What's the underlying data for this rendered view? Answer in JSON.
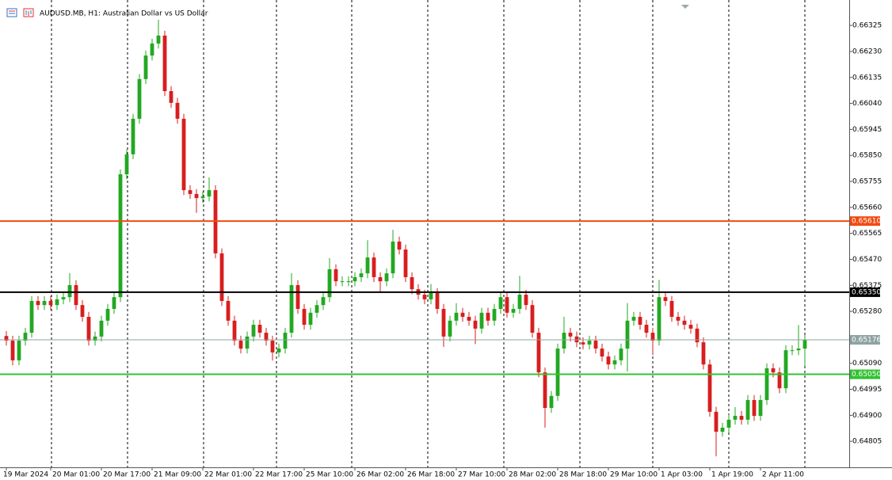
{
  "chart_data": {
    "type": "candlestick",
    "title": "AUDUSD.MB, H1:  Australian Dollar vs US Dollar",
    "up_color": "#22a822",
    "down_color": "#d81e1e",
    "categories": [
      "19 Mar 2024",
      null,
      null,
      null,
      null,
      null,
      null,
      "20 Mar 01:00",
      null,
      null,
      null,
      null,
      null,
      null,
      null,
      "20 Mar 17:00",
      null,
      null,
      null,
      null,
      null,
      null,
      null,
      "21 Mar 09:00",
      null,
      null,
      null,
      null,
      null,
      null,
      null,
      "22 Mar 01:00",
      null,
      null,
      null,
      null,
      null,
      null,
      null,
      "22 Mar 17:00",
      null,
      null,
      null,
      null,
      null,
      null,
      null,
      "25 Mar 10:00",
      null,
      null,
      null,
      null,
      null,
      null,
      null,
      "26 Mar 02:00",
      null,
      null,
      null,
      null,
      null,
      null,
      null,
      "26 Mar 18:00",
      null,
      null,
      null,
      null,
      null,
      null,
      null,
      "27 Mar 10:00",
      null,
      null,
      null,
      null,
      null,
      null,
      null,
      "28 Mar 02:00",
      null,
      null,
      null,
      null,
      null,
      null,
      null,
      "28 Mar 18:00",
      null,
      null,
      null,
      null,
      null,
      null,
      null,
      "29 Mar 10:00",
      null,
      null,
      null,
      null,
      null,
      null,
      null,
      "1 Apr 03:00",
      null,
      null,
      null,
      null,
      null,
      null,
      null,
      "1 Apr 19:00",
      null,
      null,
      null,
      null,
      null,
      null,
      null,
      "2 Apr 11:00",
      null,
      null,
      null,
      null,
      null,
      null,
      null
    ],
    "ohlc": [
      [
        0.6519,
        0.65208,
        0.65155,
        0.65173
      ],
      [
        0.65173,
        0.65191,
        0.65083,
        0.65101
      ],
      [
        0.65101,
        0.65191,
        0.65083,
        0.65173
      ],
      [
        0.65173,
        0.6522,
        0.65155,
        0.65202
      ],
      [
        0.65202,
        0.65336,
        0.65184,
        0.65318
      ],
      [
        0.65318,
        0.65336,
        0.65285,
        0.65303
      ],
      [
        0.65303,
        0.65336,
        0.65285,
        0.65318
      ],
      [
        0.65318,
        0.65336,
        0.65285,
        0.65303
      ],
      [
        0.65303,
        0.65342,
        0.65285,
        0.65324
      ],
      [
        0.65324,
        0.6535,
        0.65306,
        0.65332
      ],
      [
        0.65332,
        0.6542,
        0.65314,
        0.65376
      ],
      [
        0.65376,
        0.65394,
        0.65285,
        0.65303
      ],
      [
        0.65303,
        0.65321,
        0.65242,
        0.6526
      ],
      [
        0.6526,
        0.65278,
        0.65155,
        0.65173
      ],
      [
        0.65173,
        0.65206,
        0.65155,
        0.65188
      ],
      [
        0.65188,
        0.65264,
        0.6517,
        0.65246
      ],
      [
        0.65246,
        0.65307,
        0.65228,
        0.65289
      ],
      [
        0.65289,
        0.6535,
        0.65271,
        0.65332
      ],
      [
        0.65332,
        0.65799,
        0.65314,
        0.65781
      ],
      [
        0.65781,
        0.65872,
        0.65763,
        0.65854
      ],
      [
        0.65854,
        0.66002,
        0.65836,
        0.65984
      ],
      [
        0.65984,
        0.66147,
        0.65966,
        0.66129
      ],
      [
        0.66129,
        0.66233,
        0.66111,
        0.66215
      ],
      [
        0.66215,
        0.66277,
        0.66197,
        0.66259
      ],
      [
        0.66259,
        0.66346,
        0.66241,
        0.66288
      ],
      [
        0.66288,
        0.66306,
        0.66067,
        0.66085
      ],
      [
        0.66085,
        0.66103,
        0.66024,
        0.66042
      ],
      [
        0.66042,
        0.6606,
        0.65966,
        0.65984
      ],
      [
        0.65984,
        0.66002,
        0.65705,
        0.65723
      ],
      [
        0.65723,
        0.65741,
        0.65691,
        0.65709
      ],
      [
        0.65709,
        0.65727,
        0.6564,
        0.65694
      ],
      [
        0.65694,
        0.65718,
        0.65676,
        0.657
      ],
      [
        0.657,
        0.6577,
        0.65682,
        0.65723
      ],
      [
        0.65723,
        0.65741,
        0.65474,
        0.65492
      ],
      [
        0.65492,
        0.6551,
        0.653,
        0.65318
      ],
      [
        0.65318,
        0.65336,
        0.65228,
        0.65246
      ],
      [
        0.65246,
        0.65264,
        0.65155,
        0.65173
      ],
      [
        0.65173,
        0.65191,
        0.65126,
        0.65144
      ],
      [
        0.65144,
        0.65206,
        0.65126,
        0.65188
      ],
      [
        0.65188,
        0.65249,
        0.6517,
        0.65231
      ],
      [
        0.65231,
        0.65249,
        0.65184,
        0.65202
      ],
      [
        0.65202,
        0.6522,
        0.65155,
        0.65173
      ],
      [
        0.65173,
        0.65191,
        0.651,
        0.6513
      ],
      [
        0.6513,
        0.65162,
        0.65112,
        0.65144
      ],
      [
        0.65144,
        0.6522,
        0.65126,
        0.65202
      ],
      [
        0.65202,
        0.6542,
        0.65184,
        0.65376
      ],
      [
        0.65376,
        0.65394,
        0.65271,
        0.65289
      ],
      [
        0.65289,
        0.65307,
        0.65213,
        0.65231
      ],
      [
        0.65231,
        0.65293,
        0.65213,
        0.65275
      ],
      [
        0.65275,
        0.65321,
        0.65257,
        0.65303
      ],
      [
        0.65303,
        0.6535,
        0.65285,
        0.65332
      ],
      [
        0.65332,
        0.65475,
        0.65314,
        0.65434
      ],
      [
        0.65434,
        0.65452,
        0.65372,
        0.6539
      ],
      [
        0.6539,
        0.65408,
        0.65372,
        0.6539
      ],
      [
        0.6539,
        0.65408,
        0.65372,
        0.6539
      ],
      [
        0.6539,
        0.65423,
        0.65372,
        0.65405
      ],
      [
        0.65405,
        0.65437,
        0.65387,
        0.65419
      ],
      [
        0.65419,
        0.6554,
        0.65401,
        0.65477
      ],
      [
        0.65477,
        0.65495,
        0.65387,
        0.65405
      ],
      [
        0.65405,
        0.65423,
        0.6535,
        0.6539
      ],
      [
        0.6539,
        0.65437,
        0.65372,
        0.65419
      ],
      [
        0.65419,
        0.65578,
        0.65401,
        0.65535
      ],
      [
        0.65535,
        0.65553,
        0.65488,
        0.65506
      ],
      [
        0.65506,
        0.65524,
        0.65387,
        0.65405
      ],
      [
        0.65405,
        0.65423,
        0.65343,
        0.65361
      ],
      [
        0.65361,
        0.65379,
        0.65323,
        0.65341
      ],
      [
        0.65341,
        0.65359,
        0.65306,
        0.65324
      ],
      [
        0.65324,
        0.6538,
        0.65306,
        0.65347
      ],
      [
        0.65347,
        0.65365,
        0.65271,
        0.65289
      ],
      [
        0.65289,
        0.65307,
        0.6515,
        0.65188
      ],
      [
        0.65188,
        0.65264,
        0.6517,
        0.65246
      ],
      [
        0.65246,
        0.6531,
        0.65228,
        0.65275
      ],
      [
        0.65275,
        0.65293,
        0.65242,
        0.6526
      ],
      [
        0.6526,
        0.65278,
        0.65228,
        0.65246
      ],
      [
        0.65246,
        0.65264,
        0.6516,
        0.65217
      ],
      [
        0.65217,
        0.65293,
        0.65199,
        0.65275
      ],
      [
        0.65275,
        0.65293,
        0.65228,
        0.65246
      ],
      [
        0.65246,
        0.65307,
        0.65228,
        0.65289
      ],
      [
        0.65289,
        0.6535,
        0.65271,
        0.65332
      ],
      [
        0.65332,
        0.6535,
        0.65257,
        0.65275
      ],
      [
        0.65275,
        0.65307,
        0.65257,
        0.65289
      ],
      [
        0.65289,
        0.6541,
        0.65271,
        0.65341
      ],
      [
        0.65341,
        0.65359,
        0.65285,
        0.65303
      ],
      [
        0.65303,
        0.65321,
        0.65184,
        0.65202
      ],
      [
        0.65202,
        0.6522,
        0.65039,
        0.65057
      ],
      [
        0.65057,
        0.65075,
        0.64855,
        0.64927
      ],
      [
        0.64927,
        0.64989,
        0.64909,
        0.64971
      ],
      [
        0.64971,
        0.65162,
        0.64953,
        0.65144
      ],
      [
        0.65144,
        0.6526,
        0.65126,
        0.65202
      ],
      [
        0.65202,
        0.6522,
        0.6517,
        0.65188
      ],
      [
        0.65188,
        0.65206,
        0.65149,
        0.65167
      ],
      [
        0.65167,
        0.65185,
        0.65141,
        0.65159
      ],
      [
        0.65159,
        0.65191,
        0.65141,
        0.65173
      ],
      [
        0.65173,
        0.65191,
        0.65126,
        0.65144
      ],
      [
        0.65144,
        0.65162,
        0.65097,
        0.65115
      ],
      [
        0.65115,
        0.65133,
        0.65068,
        0.65086
      ],
      [
        0.65086,
        0.65119,
        0.65068,
        0.65101
      ],
      [
        0.65101,
        0.65162,
        0.65083,
        0.65144
      ],
      [
        0.65144,
        0.6531,
        0.6506,
        0.65246
      ],
      [
        0.65246,
        0.65278,
        0.65228,
        0.6526
      ],
      [
        0.6526,
        0.65278,
        0.65213,
        0.65231
      ],
      [
        0.65231,
        0.65249,
        0.65184,
        0.65202
      ],
      [
        0.65202,
        0.6522,
        0.6512,
        0.65173
      ],
      [
        0.65173,
        0.65395,
        0.65155,
        0.65332
      ],
      [
        0.65332,
        0.6535,
        0.653,
        0.65318
      ],
      [
        0.65318,
        0.65336,
        0.65242,
        0.6526
      ],
      [
        0.6526,
        0.65278,
        0.65228,
        0.65246
      ],
      [
        0.65246,
        0.65264,
        0.65213,
        0.65231
      ],
      [
        0.65231,
        0.65249,
        0.65199,
        0.65217
      ],
      [
        0.65217,
        0.65235,
        0.65149,
        0.65167
      ],
      [
        0.65167,
        0.65185,
        0.65068,
        0.65086
      ],
      [
        0.65086,
        0.65104,
        0.64895,
        0.64913
      ],
      [
        0.64913,
        0.64931,
        0.6475,
        0.6484
      ],
      [
        0.6484,
        0.64873,
        0.64822,
        0.64855
      ],
      [
        0.64855,
        0.64902,
        0.64837,
        0.64884
      ],
      [
        0.64884,
        0.6493,
        0.64866,
        0.64898
      ],
      [
        0.64898,
        0.64916,
        0.64866,
        0.64884
      ],
      [
        0.64884,
        0.64974,
        0.64866,
        0.64956
      ],
      [
        0.64956,
        0.64974,
        0.6488,
        0.64898
      ],
      [
        0.64898,
        0.64974,
        0.6488,
        0.64956
      ],
      [
        0.64956,
        0.6509,
        0.64938,
        0.65072
      ],
      [
        0.65072,
        0.6509,
        0.65039,
        0.65057
      ],
      [
        0.65057,
        0.65075,
        0.64981,
        0.64999
      ],
      [
        0.64999,
        0.65156,
        0.64981,
        0.65138
      ],
      [
        0.65138,
        0.65156,
        0.6512,
        0.65138
      ],
      [
        0.65138,
        0.6523,
        0.6512,
        0.65144
      ],
      [
        0.65144,
        0.65194,
        0.6508,
        0.65176
      ]
    ],
    "ylim": [
      0.6471,
      0.66418
    ],
    "yticks": [
      0.66325,
      {
        "value": 0.6623,
        "label": "0.66230"
      },
      0.66135,
      {
        "value": 0.6604,
        "label": "0.66040"
      },
      0.65945,
      {
        "value": 0.6585,
        "label": "0.65850"
      },
      0.65755,
      {
        "value": 0.6566,
        "label": "0.65660"
      },
      0.65565,
      {
        "value": 0.6547,
        "label": "0.65470"
      },
      0.65375,
      {
        "value": 0.6528,
        "label": "0.65280"
      },
      {
        "value": 0.6509,
        "label": "0.65090"
      },
      0.64995,
      {
        "value": 0.649,
        "label": "0.64900"
      },
      0.64805
    ],
    "hlines": [
      {
        "value": 0.6561,
        "label": "0.65610",
        "color": "#f24a12",
        "width": 2
      },
      {
        "value": 0.6535,
        "label": "0.65350",
        "color": "#000000",
        "width": 2
      },
      {
        "value": 0.65176,
        "label": "0.65176",
        "color": "#8fa3a3",
        "width": 1
      },
      {
        "value": 0.6505,
        "label": "0.65050",
        "color": "#33c133",
        "width": 2
      }
    ]
  }
}
